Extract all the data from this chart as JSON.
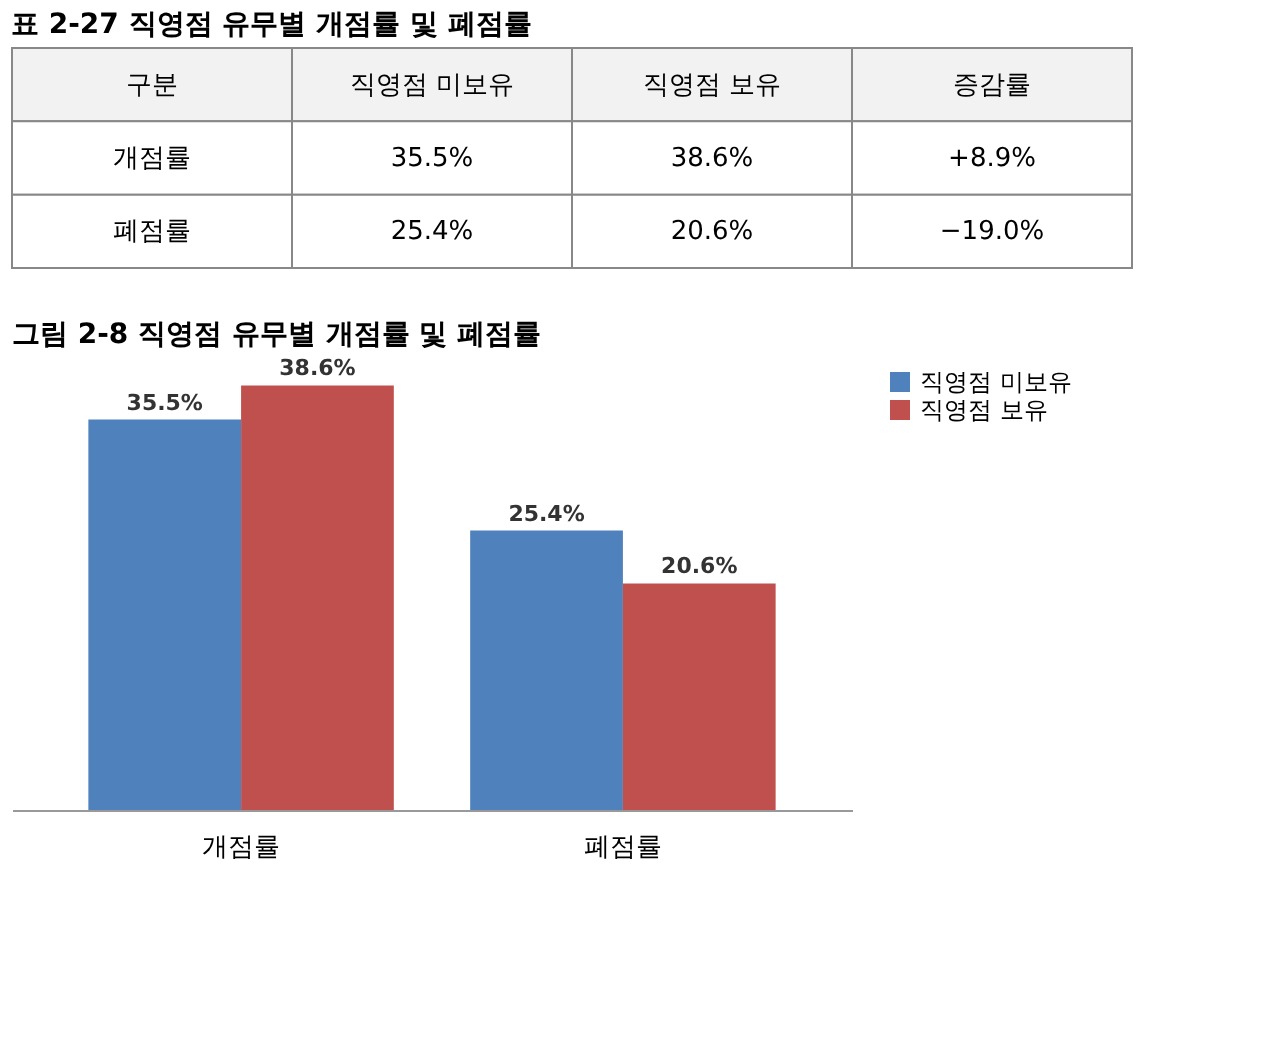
{
  "chart_data": {
    "type": "bar",
    "title": "그림 2-8 직영점 유무별 개점률 및 폐점률",
    "categories": [
      "개점률",
      "폐점률"
    ],
    "series": [
      {
        "name": "직영점 미보유",
        "color": "#4f81bd",
        "values": [
          35.5,
          25.4
        ],
        "value_labels": [
          "35.5%",
          "25.4%"
        ]
      },
      {
        "name": "직영점 보유",
        "color": "#c0504d",
        "values": [
          38.6,
          20.6
        ],
        "value_labels": [
          "38.6%",
          "20.6%"
        ]
      }
    ],
    "legend": "right",
    "grid": false,
    "annotations": [
      "표 2-27 직영점 유무별 개점률 및 폐점률",
      "구분",
      "직영점 미보유",
      "직영점 보유",
      "증감률",
      "개점률",
      "35.5%",
      "38.6%",
      "+8.9%",
      "폐점률",
      "25.4%",
      "20.6%",
      "−19.0%"
    ]
  }
}
